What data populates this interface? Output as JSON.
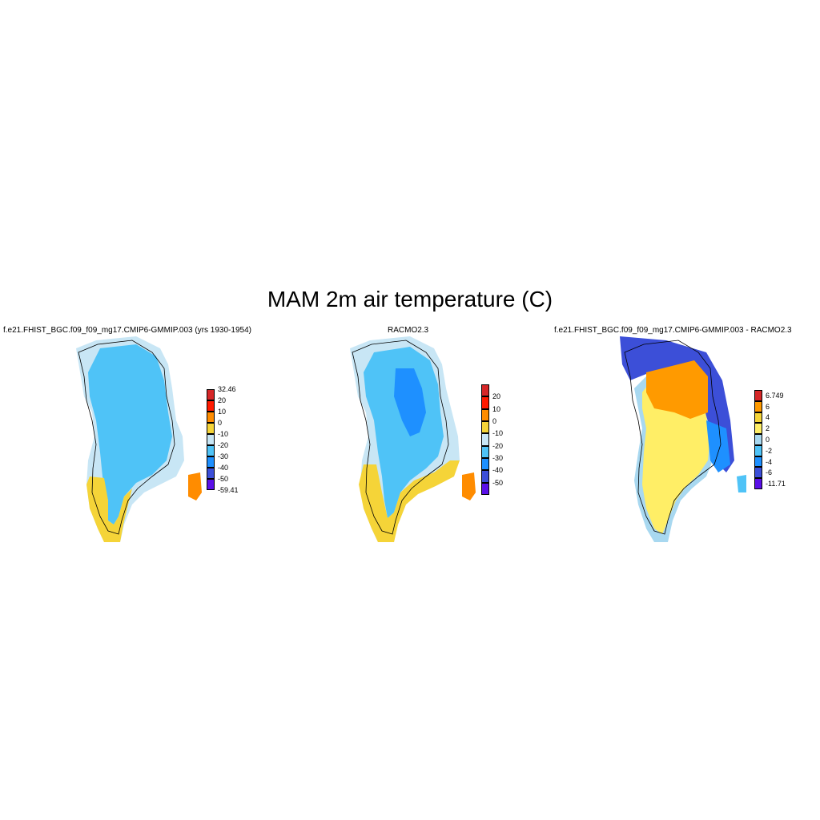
{
  "title": "MAM 2m air temperature (C)",
  "panels": [
    {
      "title": "f.e21.FHIST_BGC.f09_f09_mg17.CMIP6-GMMIP.003 (yrs 1930-1954)",
      "colorbar": {
        "colors": [
          "#5a10e8",
          "#3c4fd8",
          "#1e90ff",
          "#4fc3f7",
          "#c8e6f5",
          "#f5d438",
          "#ff8c00",
          "#ff1a00",
          "#d62728"
        ],
        "labels": [
          "-59.41",
          "-50",
          "-40",
          "-30",
          "-20",
          "-10",
          "0",
          "10",
          "20",
          "32.46"
        ]
      }
    },
    {
      "title": "RACMO2.3",
      "colorbar": {
        "colors": [
          "#5a10e8",
          "#3c4fd8",
          "#1e90ff",
          "#4fc3f7",
          "#c8e6f5",
          "#f5d438",
          "#ff8c00",
          "#ff1a00",
          "#d62728"
        ],
        "labels": [
          "",
          "-50",
          "-40",
          "-30",
          "-20",
          "-10",
          "0",
          "10",
          "20",
          ""
        ]
      }
    },
    {
      "title": "f.e21.FHIST_BGC.f09_f09_mg17.CMIP6-GMMIP.003 - RACMO2.3",
      "colorbar": {
        "colors": [
          "#5a10e8",
          "#3c4fd8",
          "#1e90ff",
          "#4fc3f7",
          "#a8d8f0",
          "#ffee66",
          "#f5d438",
          "#ff9a00",
          "#d62728"
        ],
        "labels": [
          "-11.71",
          "-6",
          "-4",
          "-2",
          "0",
          "2",
          "4",
          "6",
          "6.749"
        ]
      }
    }
  ]
}
